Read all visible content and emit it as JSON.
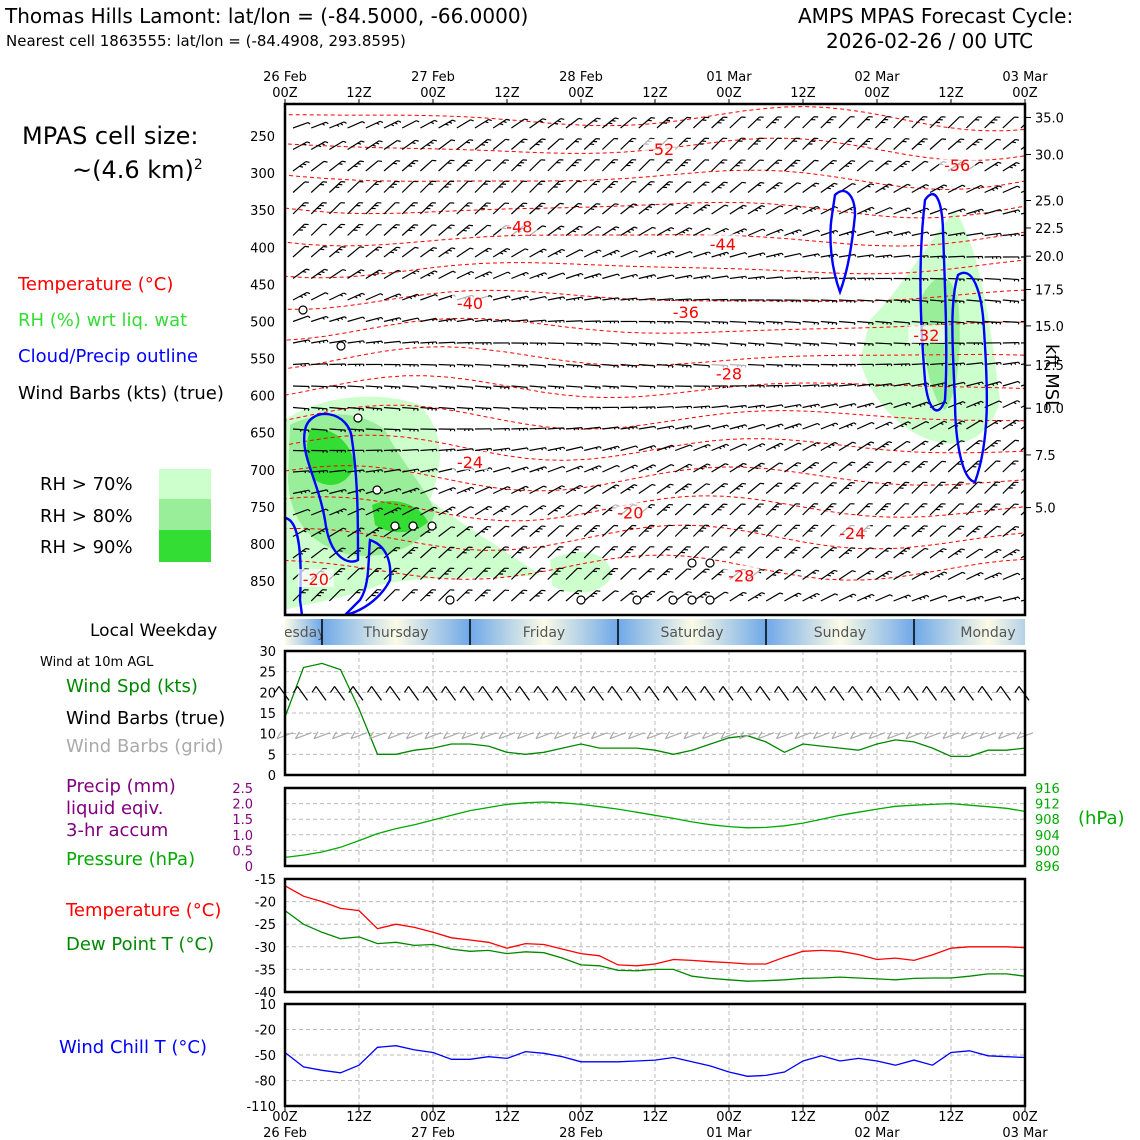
{
  "header": {
    "title_left": "Thomas Hills Lamont: lat/lon = (-84.5000, -66.0000)",
    "subtitle_left": "Nearest cell 1863555: lat/lon = (-84.4908, 293.8595)",
    "title_right_1": "AMPS MPAS Forecast Cycle:",
    "title_right_2": "2026-02-26 / 00 UTC"
  },
  "legend": {
    "cell_size_1": "MPAS cell size:",
    "cell_size_2": "~(4.6 km)",
    "cell_size_sup": "2",
    "temperature": "Temperature (°C)",
    "rh": "RH (%) wrt liq. wat",
    "cloud": "Cloud/Precip outline",
    "barbs": "Wind Barbs (kts) (true)",
    "rh70": "RH > 70%",
    "rh80": "RH > 80%",
    "rh90": "RH > 90%",
    "local_weekday": "Local Weekday",
    "wind10m": "Wind at 10m AGL",
    "wind_spd": "Wind Spd (kts)",
    "wind_true": "Wind Barbs (true)",
    "wind_grid": "Wind Barbs (grid)",
    "precip_1": "Precip (mm)",
    "precip_2": "liquid eqiv.",
    "precip_3": "3-hr accum",
    "pressure": "Pressure (hPa)",
    "pressure_unit": "(hPa)",
    "temp2": "Temperature (°C)",
    "dewpoint": "Dew Point T (°C)",
    "windchill": "Wind Chill T (°C)",
    "kft": "kft MSL"
  },
  "colors": {
    "temperature": "#ff0000",
    "rh": "#2ecc2e",
    "cloud": "#0000ff",
    "barbs": "#000000",
    "barbs_grid": "#aaaaaa",
    "precip": "#800080",
    "pressure": "#00aa00",
    "rh70": "#ccffcc",
    "rh80": "#99ee99",
    "rh90": "#33dd33",
    "windchill": "#0000ff"
  },
  "time_axis": {
    "top_dates": [
      "26 Feb",
      "27 Feb",
      "28 Feb",
      "01 Mar",
      "02 Mar",
      "03 Mar"
    ],
    "top_dates_positions": [
      0,
      24,
      48,
      72,
      96,
      120
    ],
    "hour_labels": [
      "00Z",
      "12Z",
      "00Z",
      "12Z",
      "00Z",
      "12Z",
      "00Z",
      "12Z",
      "00Z",
      "12Z",
      "00Z"
    ],
    "hour_positions": [
      0,
      12,
      24,
      36,
      48,
      60,
      72,
      84,
      96,
      108,
      120
    ]
  },
  "weekdays": [
    {
      "label": "Wednesday",
      "start": -6,
      "end": 6
    },
    {
      "label": "Thursday",
      "start": 6,
      "end": 30
    },
    {
      "label": "Friday",
      "start": 30,
      "end": 54
    },
    {
      "label": "Saturday",
      "start": 54,
      "end": 78
    },
    {
      "label": "Sunday",
      "start": 78,
      "end": 102
    },
    {
      "label": "Monday",
      "start": 102,
      "end": 126
    }
  ],
  "cross_section": {
    "pressure_ticks": [
      "250",
      "300",
      "350",
      "400",
      "450",
      "500",
      "550",
      "600",
      "650",
      "700",
      "750",
      "800",
      "850"
    ],
    "pressure_values": [
      250,
      300,
      350,
      400,
      450,
      500,
      550,
      600,
      650,
      700,
      750,
      800,
      850
    ],
    "kft_ticks": [
      "35.0",
      "30.0",
      "25.0",
      "22.5",
      "20.0",
      "17.5",
      "15.0",
      "12.5",
      "10.0",
      "7.5",
      "5.0"
    ],
    "kft_pressure": [
      225,
      275,
      337,
      374,
      412,
      457,
      506,
      559,
      617,
      680,
      751
    ],
    "temp_labels": [
      {
        "t": "-52",
        "x": 61,
        "p": 270
      },
      {
        "t": "-56",
        "x": 109,
        "p": 292
      },
      {
        "t": "-48",
        "x": 38,
        "p": 375
      },
      {
        "t": "-44",
        "x": 71,
        "p": 398
      },
      {
        "t": "-40",
        "x": 30,
        "p": 478
      },
      {
        "t": "-36",
        "x": 65,
        "p": 490
      },
      {
        "t": "-32",
        "x": 104,
        "p": 521
      },
      {
        "t": "-28",
        "x": 72,
        "p": 573
      },
      {
        "t": "-24",
        "x": 30,
        "p": 692
      },
      {
        "t": "-20",
        "x": 56,
        "p": 760
      },
      {
        "t": "-24",
        "x": 92,
        "p": 788
      },
      {
        "t": "-28",
        "x": 74,
        "p": 845
      },
      {
        "t": "-20",
        "x": 5,
        "p": 850
      }
    ]
  },
  "chart_data": [
    {
      "type": "line",
      "title": "Wind at 10m AGL",
      "ylabel": "Wind Spd (kts)",
      "ylim": [
        0,
        30
      ],
      "yticks": [
        "0",
        "5",
        "10",
        "15",
        "20",
        "25",
        "30"
      ],
      "x": [
        0,
        3,
        6,
        9,
        12,
        15,
        18,
        21,
        24,
        27,
        30,
        33,
        36,
        39,
        42,
        45,
        48,
        51,
        54,
        57,
        60,
        63,
        66,
        69,
        72,
        75,
        78,
        81,
        84,
        87,
        90,
        93,
        96,
        99,
        102,
        105,
        108,
        111,
        114,
        117,
        120
      ],
      "series": [
        {
          "name": "Wind Spd (kts)",
          "values": [
            14,
            26,
            27,
            25.5,
            16,
            5,
            5,
            6,
            6.5,
            7.5,
            7.5,
            7,
            5.5,
            5,
            5.5,
            6.5,
            7.5,
            6.5,
            6.5,
            6.5,
            6,
            5,
            6,
            7.5,
            9,
            9.5,
            8,
            5.5,
            7.5,
            7,
            6.5,
            6,
            7.5,
            8.5,
            8,
            6.5,
            4.5,
            4.5,
            6,
            6,
            6.5
          ]
        }
      ],
      "grid": true
    },
    {
      "type": "line",
      "ylabel": "Pressure (hPa)",
      "ylim": [
        896,
        916
      ],
      "yticks": [
        "896",
        "900",
        "904",
        "908",
        "912",
        "916"
      ],
      "precip_ylim": [
        0,
        2.5
      ],
      "precip_yticks": [
        "0",
        "0.5",
        "1.0",
        "1.5",
        "2.0",
        "2.5"
      ],
      "x": [
        0,
        3,
        6,
        9,
        12,
        15,
        18,
        21,
        24,
        27,
        30,
        33,
        36,
        39,
        42,
        45,
        48,
        51,
        54,
        57,
        60,
        63,
        66,
        69,
        72,
        75,
        78,
        81,
        84,
        87,
        90,
        93,
        96,
        99,
        102,
        105,
        108,
        111,
        114,
        117,
        120
      ],
      "series": [
        {
          "name": "Pressure (hPa)",
          "values": [
            898.2,
            898.8,
            899.6,
            900.8,
            902.5,
            904.3,
            905.6,
            906.6,
            907.8,
            909.0,
            910.2,
            911.0,
            911.8,
            912.2,
            912.4,
            912.2,
            911.8,
            911.2,
            910.6,
            909.8,
            909.0,
            908.2,
            907.3,
            906.6,
            906.1,
            905.8,
            905.9,
            906.3,
            907.0,
            908.0,
            909.0,
            909.8,
            910.6,
            911.3,
            911.6,
            911.8,
            912.0,
            911.6,
            911.2,
            910.8,
            910.0
          ]
        }
      ],
      "grid": true
    },
    {
      "type": "line",
      "ylim": [
        -40,
        -15
      ],
      "yticks": [
        "-40",
        "-35",
        "-30",
        "-25",
        "-20",
        "-15"
      ],
      "x": [
        0,
        3,
        6,
        9,
        12,
        15,
        18,
        21,
        24,
        27,
        30,
        33,
        36,
        39,
        42,
        45,
        48,
        51,
        54,
        57,
        60,
        63,
        66,
        69,
        72,
        75,
        78,
        81,
        84,
        87,
        90,
        93,
        96,
        99,
        102,
        105,
        108,
        111,
        114,
        117,
        120
      ],
      "series": [
        {
          "name": "Temperature (°C)",
          "values": [
            -16.5,
            -18.8,
            -20,
            -21.5,
            -22,
            -26,
            -25,
            -25.7,
            -26.8,
            -28,
            -28.5,
            -29,
            -30.3,
            -29.3,
            -29.5,
            -30.5,
            -31.5,
            -32,
            -34,
            -34.2,
            -33.8,
            -32.8,
            -33,
            -33.3,
            -33.5,
            -33.8,
            -33.8,
            -32.3,
            -31,
            -30.8,
            -31,
            -31.7,
            -32.8,
            -32.5,
            -33,
            -31.8,
            -30.3,
            -30,
            -30,
            -30,
            -30.2
          ]
        },
        {
          "name": "Dew Point T (°C)",
          "values": [
            -22,
            -25,
            -26.8,
            -28.2,
            -27.8,
            -29.3,
            -29,
            -29.7,
            -29.5,
            -30.5,
            -31,
            -30.8,
            -31.5,
            -31.1,
            -31.3,
            -32.5,
            -34,
            -34.2,
            -35.2,
            -35.3,
            -35,
            -35,
            -36.5,
            -37,
            -37.3,
            -37.6,
            -37.5,
            -37.3,
            -37,
            -36.9,
            -36.7,
            -36.9,
            -37.1,
            -37.3,
            -37,
            -36.9,
            -36.9,
            -36.5,
            -36,
            -36,
            -36.5
          ]
        }
      ],
      "grid": true
    },
    {
      "type": "line",
      "ylim": [
        -110,
        10
      ],
      "yticks": [
        "-110",
        "-80",
        "-50",
        "-20",
        "10"
      ],
      "x": [
        0,
        3,
        6,
        9,
        12,
        15,
        18,
        21,
        24,
        27,
        30,
        33,
        36,
        39,
        42,
        45,
        48,
        51,
        54,
        57,
        60,
        63,
        66,
        69,
        72,
        75,
        78,
        81,
        84,
        87,
        90,
        93,
        96,
        99,
        102,
        105,
        108,
        111,
        114,
        117,
        120
      ],
      "series": [
        {
          "name": "Wind Chill T (°C)",
          "values": [
            -47,
            -64,
            -68,
            -71,
            -62,
            -41,
            -39,
            -44,
            -47,
            -55,
            -55,
            -52,
            -54,
            -46,
            -48,
            -52,
            -58,
            -58,
            -58,
            -57,
            -56,
            -53,
            -58,
            -63,
            -70,
            -75,
            -74,
            -70,
            -57,
            -51,
            -57,
            -54,
            -57,
            -62,
            -56,
            -62,
            -47,
            -45,
            -51,
            -52,
            -53
          ]
        }
      ],
      "grid": true
    }
  ]
}
